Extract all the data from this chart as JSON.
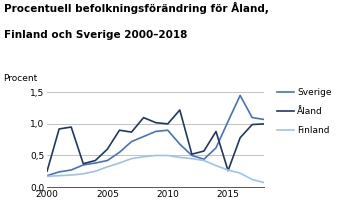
{
  "title_line1": "Procentuell befolkningsförändring för Åland,",
  "title_line2": "Finland och Sverige 2000–2018",
  "ylabel": "Procent",
  "years": [
    2000,
    2001,
    2002,
    2003,
    2004,
    2005,
    2006,
    2007,
    2008,
    2009,
    2010,
    2011,
    2012,
    2013,
    2014,
    2015,
    2016,
    2017,
    2018
  ],
  "sverige": [
    0.18,
    0.24,
    0.27,
    0.35,
    0.38,
    0.42,
    0.55,
    0.72,
    0.8,
    0.88,
    0.9,
    0.68,
    0.5,
    0.44,
    0.62,
    1.04,
    1.45,
    1.1,
    1.07
  ],
  "aland": [
    0.25,
    0.92,
    0.95,
    0.37,
    0.42,
    0.6,
    0.9,
    0.87,
    1.1,
    1.02,
    1.0,
    1.22,
    0.52,
    0.57,
    0.88,
    0.26,
    0.78,
    0.99,
    1.0
  ],
  "finland": [
    0.17,
    0.18,
    0.19,
    0.21,
    0.25,
    0.32,
    0.38,
    0.45,
    0.48,
    0.5,
    0.5,
    0.47,
    0.45,
    0.42,
    0.34,
    0.27,
    0.22,
    0.12,
    0.07
  ],
  "color_sverige": "#4472C4",
  "color_aland": "#1F3864",
  "color_finland": "#9DC3E6",
  "xlim": [
    2000,
    2018
  ],
  "ylim": [
    0.0,
    1.6
  ],
  "yticks": [
    0.0,
    0.5,
    1.0,
    1.5
  ],
  "xticks": [
    2000,
    2005,
    2010,
    2015
  ],
  "legend_labels": [
    "Sverige",
    "Åland",
    "Finland"
  ],
  "background_color": "#ffffff",
  "title_fontsize": 7.5,
  "axis_fontsize": 6.5,
  "legend_fontsize": 6.5
}
